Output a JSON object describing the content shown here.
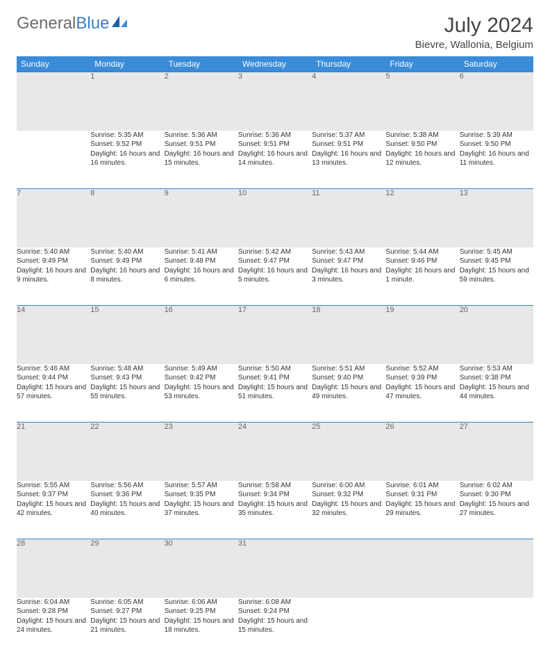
{
  "logo": {
    "text_gray": "General",
    "text_blue": "Blue"
  },
  "title": "July 2024",
  "location": "Bievre, Wallonia, Belgium",
  "colors": {
    "header_bg": "#3a8bd8",
    "header_text": "#ffffff",
    "daynum_bg": "#e8e8e8",
    "border": "#3a7fc4",
    "logo_gray": "#6b6b6b",
    "logo_blue": "#3a7fc4"
  },
  "weekdays": [
    "Sunday",
    "Monday",
    "Tuesday",
    "Wednesday",
    "Thursday",
    "Friday",
    "Saturday"
  ],
  "weeks": [
    {
      "days": [
        null,
        {
          "n": "1",
          "sr": "5:35 AM",
          "ss": "9:52 PM",
          "dl": "16 hours and 16 minutes."
        },
        {
          "n": "2",
          "sr": "5:36 AM",
          "ss": "9:51 PM",
          "dl": "16 hours and 15 minutes."
        },
        {
          "n": "3",
          "sr": "5:36 AM",
          "ss": "9:51 PM",
          "dl": "16 hours and 14 minutes."
        },
        {
          "n": "4",
          "sr": "5:37 AM",
          "ss": "9:51 PM",
          "dl": "16 hours and 13 minutes."
        },
        {
          "n": "5",
          "sr": "5:38 AM",
          "ss": "9:50 PM",
          "dl": "16 hours and 12 minutes."
        },
        {
          "n": "6",
          "sr": "5:39 AM",
          "ss": "9:50 PM",
          "dl": "16 hours and 11 minutes."
        }
      ]
    },
    {
      "days": [
        {
          "n": "7",
          "sr": "5:40 AM",
          "ss": "9:49 PM",
          "dl": "16 hours and 9 minutes."
        },
        {
          "n": "8",
          "sr": "5:40 AM",
          "ss": "9:49 PM",
          "dl": "16 hours and 8 minutes."
        },
        {
          "n": "9",
          "sr": "5:41 AM",
          "ss": "9:48 PM",
          "dl": "16 hours and 6 minutes."
        },
        {
          "n": "10",
          "sr": "5:42 AM",
          "ss": "9:47 PM",
          "dl": "16 hours and 5 minutes."
        },
        {
          "n": "11",
          "sr": "5:43 AM",
          "ss": "9:47 PM",
          "dl": "16 hours and 3 minutes."
        },
        {
          "n": "12",
          "sr": "5:44 AM",
          "ss": "9:46 PM",
          "dl": "16 hours and 1 minute."
        },
        {
          "n": "13",
          "sr": "5:45 AM",
          "ss": "9:45 PM",
          "dl": "15 hours and 59 minutes."
        }
      ]
    },
    {
      "days": [
        {
          "n": "14",
          "sr": "5:46 AM",
          "ss": "9:44 PM",
          "dl": "15 hours and 57 minutes."
        },
        {
          "n": "15",
          "sr": "5:48 AM",
          "ss": "9:43 PM",
          "dl": "15 hours and 55 minutes."
        },
        {
          "n": "16",
          "sr": "5:49 AM",
          "ss": "9:42 PM",
          "dl": "15 hours and 53 minutes."
        },
        {
          "n": "17",
          "sr": "5:50 AM",
          "ss": "9:41 PM",
          "dl": "15 hours and 51 minutes."
        },
        {
          "n": "18",
          "sr": "5:51 AM",
          "ss": "9:40 PM",
          "dl": "15 hours and 49 minutes."
        },
        {
          "n": "19",
          "sr": "5:52 AM",
          "ss": "9:39 PM",
          "dl": "15 hours and 47 minutes."
        },
        {
          "n": "20",
          "sr": "5:53 AM",
          "ss": "9:38 PM",
          "dl": "15 hours and 44 minutes."
        }
      ]
    },
    {
      "days": [
        {
          "n": "21",
          "sr": "5:55 AM",
          "ss": "9:37 PM",
          "dl": "15 hours and 42 minutes."
        },
        {
          "n": "22",
          "sr": "5:56 AM",
          "ss": "9:36 PM",
          "dl": "15 hours and 40 minutes."
        },
        {
          "n": "23",
          "sr": "5:57 AM",
          "ss": "9:35 PM",
          "dl": "15 hours and 37 minutes."
        },
        {
          "n": "24",
          "sr": "5:58 AM",
          "ss": "9:34 PM",
          "dl": "15 hours and 35 minutes."
        },
        {
          "n": "25",
          "sr": "6:00 AM",
          "ss": "9:32 PM",
          "dl": "15 hours and 32 minutes."
        },
        {
          "n": "26",
          "sr": "6:01 AM",
          "ss": "9:31 PM",
          "dl": "15 hours and 29 minutes."
        },
        {
          "n": "27",
          "sr": "6:02 AM",
          "ss": "9:30 PM",
          "dl": "15 hours and 27 minutes."
        }
      ]
    },
    {
      "days": [
        {
          "n": "28",
          "sr": "6:04 AM",
          "ss": "9:28 PM",
          "dl": "15 hours and 24 minutes."
        },
        {
          "n": "29",
          "sr": "6:05 AM",
          "ss": "9:27 PM",
          "dl": "15 hours and 21 minutes."
        },
        {
          "n": "30",
          "sr": "6:06 AM",
          "ss": "9:25 PM",
          "dl": "15 hours and 18 minutes."
        },
        {
          "n": "31",
          "sr": "6:08 AM",
          "ss": "9:24 PM",
          "dl": "15 hours and 15 minutes."
        },
        null,
        null,
        null
      ]
    }
  ],
  "labels": {
    "sunrise": "Sunrise:",
    "sunset": "Sunset:",
    "daylight": "Daylight:"
  }
}
